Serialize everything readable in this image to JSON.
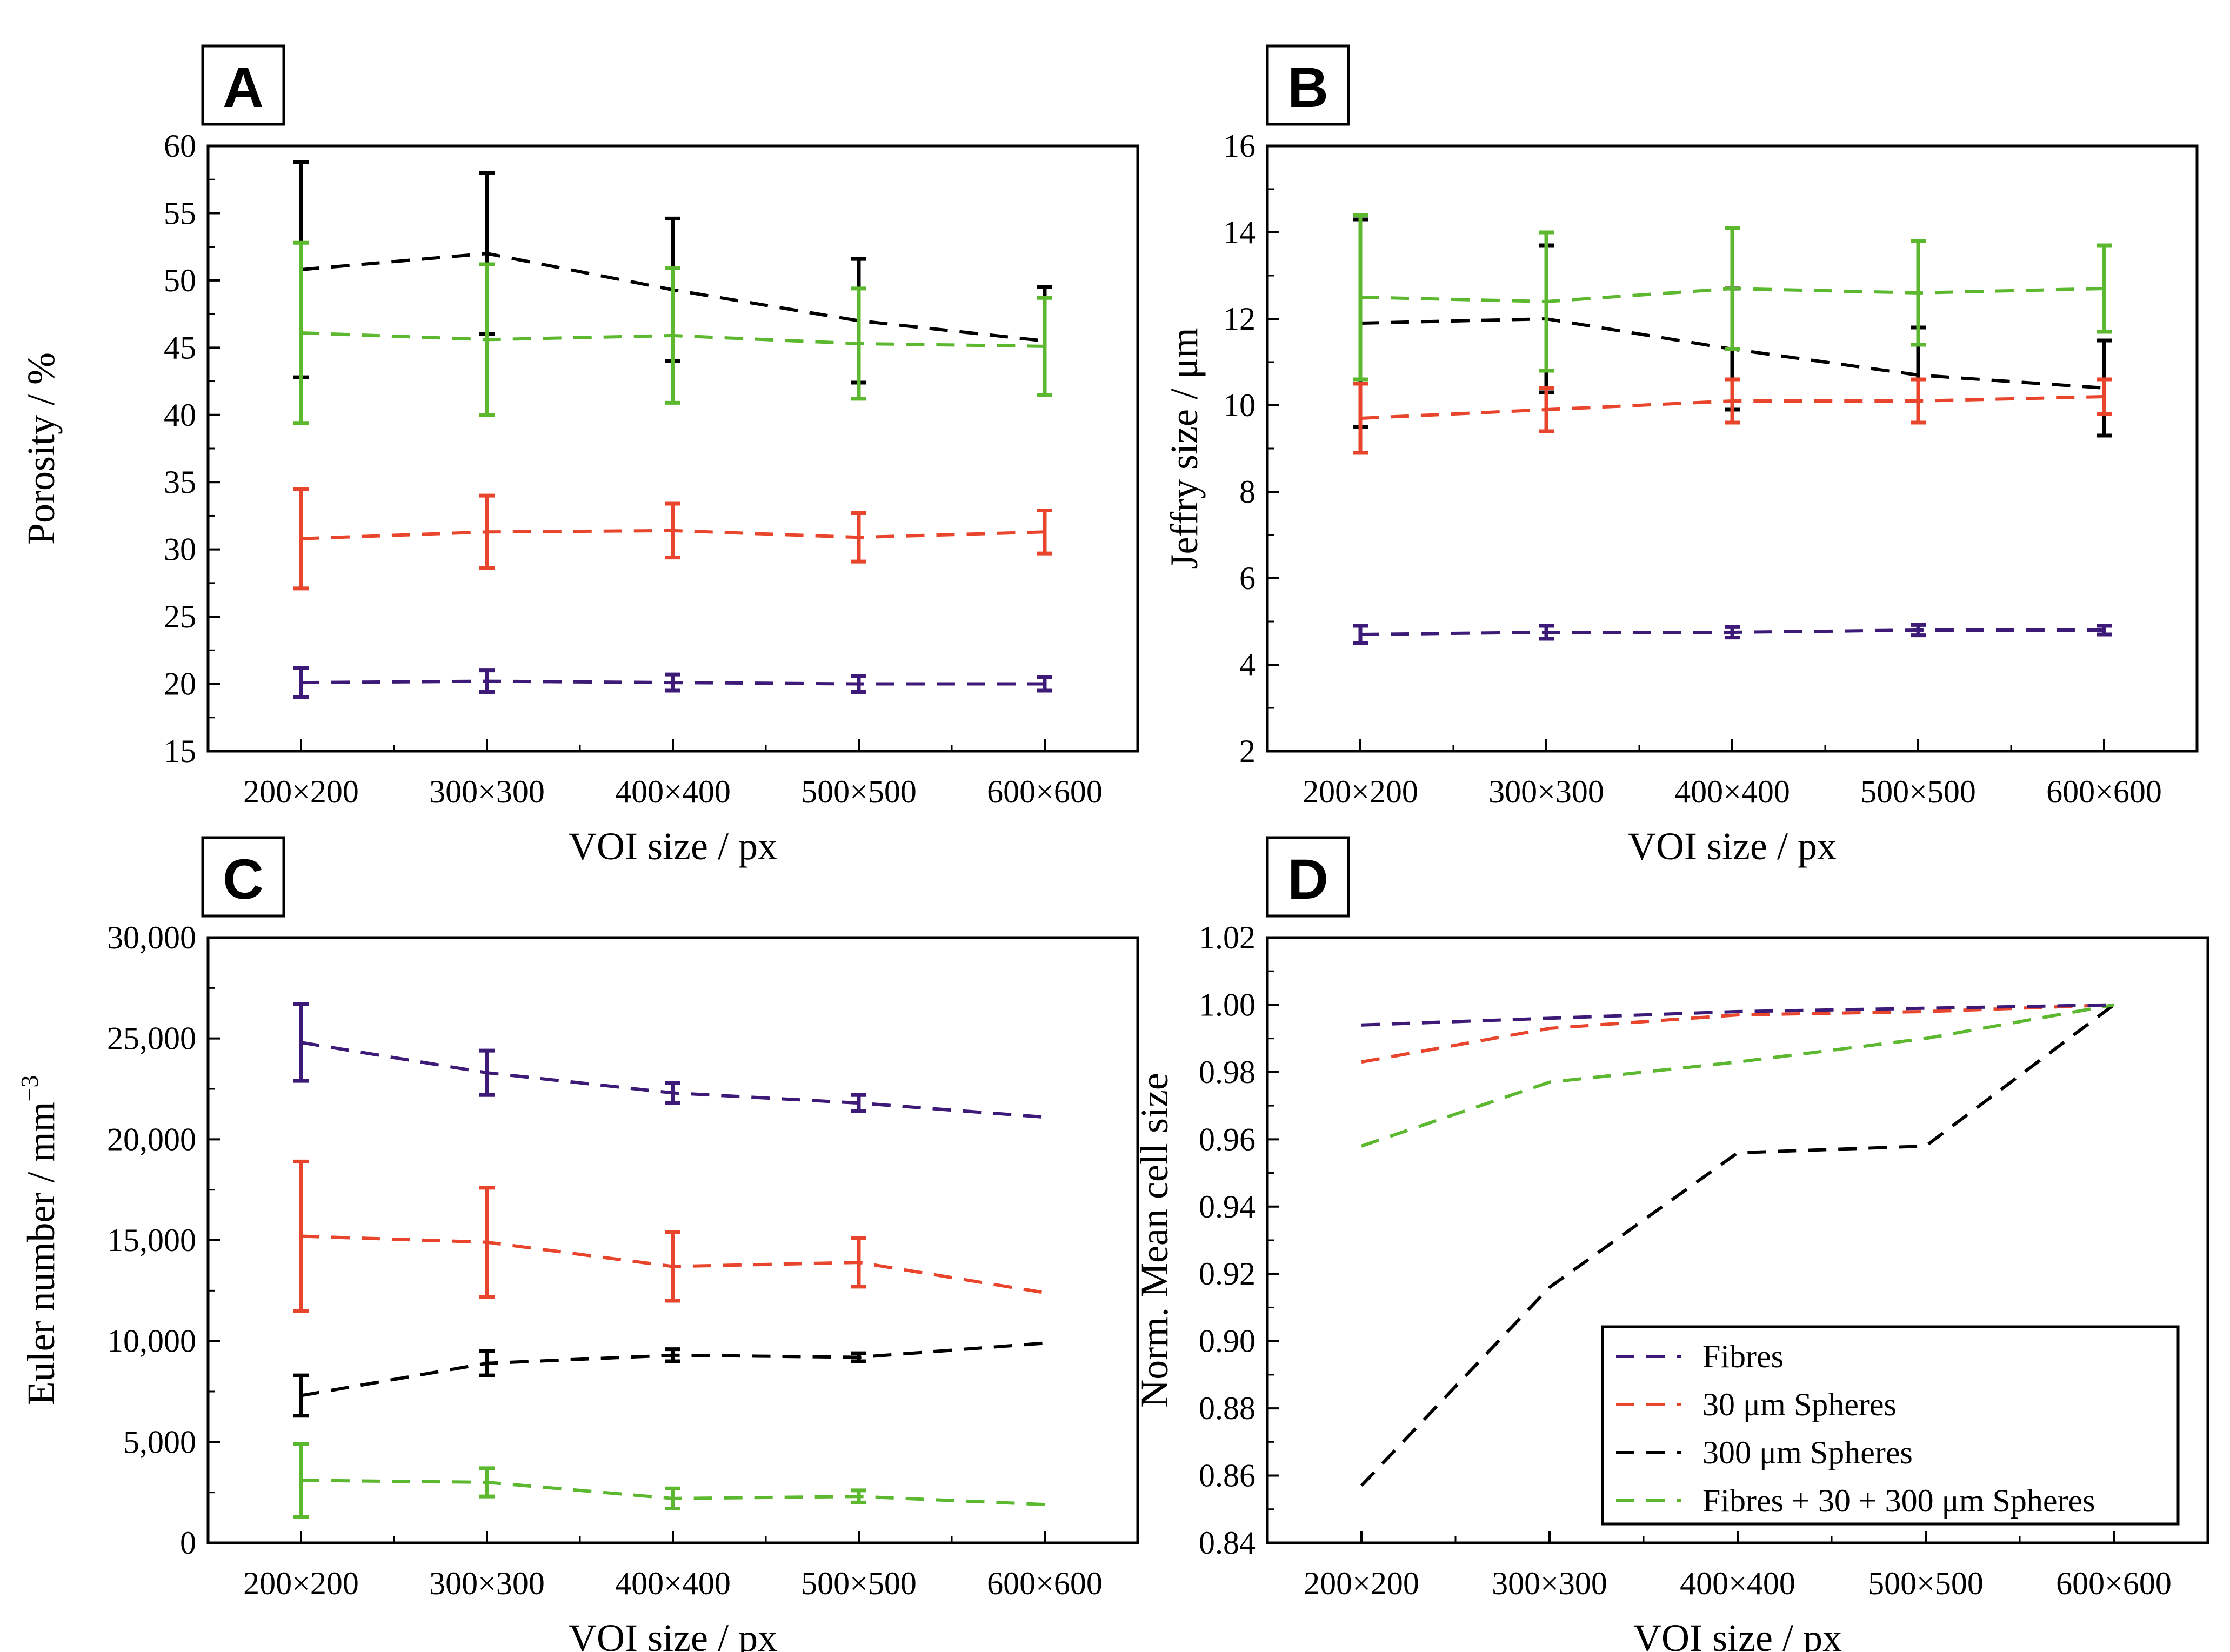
{
  "colors": {
    "fibres": "#3d1a78",
    "spheres30": "#e8452c",
    "spheres300": "#000000",
    "combined": "#5cb82e"
  },
  "legend": {
    "items": [
      {
        "series": "fibres",
        "label": "Fibres"
      },
      {
        "series": "spheres30",
        "label": "30 μm Spheres"
      },
      {
        "series": "spheres300",
        "label": "300 μm Spheres"
      },
      {
        "series": "combined",
        "label": "Fibres + 30 + 300 μm Spheres"
      }
    ]
  },
  "chart_data": [
    {
      "panel": "A",
      "type": "line",
      "categories": [
        "200×200",
        "300×300",
        "400×400",
        "500×500",
        "600×600"
      ],
      "xlabel": "VOI size / px",
      "ylabel": "Porosity / %",
      "ylim": [
        15,
        60
      ],
      "yticks": [
        15,
        20,
        25,
        30,
        35,
        40,
        45,
        50,
        55,
        60
      ],
      "ytick_labels": [
        "15",
        "20",
        "25",
        "30",
        "35",
        "40",
        "45",
        "50",
        "55",
        "60"
      ],
      "series": [
        {
          "key": "spheres300",
          "name": "300 μm Spheres",
          "values": [
            50.8,
            52.0,
            49.3,
            47.0,
            45.5
          ],
          "err": [
            8.0,
            6.0,
            5.3,
            4.6,
            4.0
          ]
        },
        {
          "key": "combined",
          "name": "Fibres + 30 + 300 μm Spheres",
          "values": [
            46.1,
            45.6,
            45.9,
            45.3,
            45.1
          ],
          "err": [
            6.7,
            5.6,
            5.0,
            4.1,
            3.6
          ]
        },
        {
          "key": "spheres30",
          "name": "30 μm Spheres",
          "values": [
            30.8,
            31.3,
            31.4,
            30.9,
            31.3
          ],
          "err": [
            3.7,
            2.7,
            2.0,
            1.8,
            1.6
          ]
        },
        {
          "key": "fibres",
          "name": "Fibres",
          "values": [
            20.1,
            20.2,
            20.1,
            20.0,
            20.0
          ],
          "err": [
            1.1,
            0.8,
            0.6,
            0.6,
            0.5
          ]
        }
      ]
    },
    {
      "panel": "B",
      "type": "line",
      "categories": [
        "200×200",
        "300×300",
        "400×400",
        "500×500",
        "600×600"
      ],
      "xlabel": "VOI size / px",
      "ylabel": "Jeffry size / μm",
      "ylim": [
        2,
        16
      ],
      "yticks": [
        2,
        4,
        6,
        8,
        10,
        12,
        14,
        16
      ],
      "ytick_labels": [
        "2",
        "4",
        "6",
        "8",
        "10",
        "12",
        "14",
        "16"
      ],
      "series": [
        {
          "key": "spheres300",
          "name": "300 μm Spheres",
          "values": [
            11.9,
            12.0,
            11.3,
            10.7,
            10.4
          ],
          "err": [
            2.4,
            1.7,
            1.4,
            1.1,
            1.1
          ]
        },
        {
          "key": "combined",
          "name": "Fibres + 30 + 300 μm Spheres",
          "values": [
            12.5,
            12.4,
            12.7,
            12.6,
            12.7
          ],
          "err": [
            1.9,
            1.6,
            1.4,
            1.2,
            1.0
          ]
        },
        {
          "key": "spheres30",
          "name": "30 μm Spheres",
          "values": [
            9.7,
            9.9,
            10.1,
            10.1,
            10.2
          ],
          "err": [
            0.8,
            0.5,
            0.5,
            0.5,
            0.4
          ]
        },
        {
          "key": "fibres",
          "name": "Fibres",
          "values": [
            4.7,
            4.75,
            4.75,
            4.8,
            4.8
          ],
          "err": [
            0.2,
            0.15,
            0.12,
            0.12,
            0.1
          ]
        }
      ]
    },
    {
      "panel": "C",
      "type": "line",
      "categories": [
        "200×200",
        "300×300",
        "400×400",
        "500×500",
        "600×600"
      ],
      "xlabel": "VOI size / px",
      "ylabel": "Euler number / mm",
      "ylabel_superscript": "−3",
      "ylim": [
        0,
        30000
      ],
      "yticks": [
        0,
        5000,
        10000,
        15000,
        20000,
        25000,
        30000
      ],
      "ytick_labels": [
        "0",
        "5,000",
        "10,000",
        "15,000",
        "20,000",
        "25,000",
        "30,000"
      ],
      "series": [
        {
          "key": "fibres",
          "name": "Fibres",
          "values": [
            24800,
            23300,
            22300,
            21800,
            21100
          ],
          "err": [
            1900,
            1100,
            500,
            400,
            null
          ]
        },
        {
          "key": "spheres30",
          "name": "30 μm Spheres",
          "values": [
            15200,
            14900,
            13700,
            13900,
            12400
          ],
          "err": [
            3700,
            2700,
            1700,
            1200,
            null
          ]
        },
        {
          "key": "spheres300",
          "name": "300 μm Spheres",
          "values": [
            7300,
            8900,
            9300,
            9200,
            9900
          ],
          "err": [
            1000,
            600,
            300,
            200,
            null
          ]
        },
        {
          "key": "combined",
          "name": "Fibres + 30 + 300 μm Spheres",
          "values": [
            3100,
            3000,
            2200,
            2300,
            1900
          ],
          "err": [
            1800,
            700,
            500,
            300,
            null
          ]
        }
      ]
    },
    {
      "panel": "D",
      "type": "line",
      "categories": [
        "200×200",
        "300×300",
        "400×400",
        "500×500",
        "600×600"
      ],
      "xlabel": "VOI size / px",
      "ylabel": "Norm. Mean cell size",
      "ylim": [
        0.84,
        1.02
      ],
      "yticks": [
        0.84,
        0.86,
        0.88,
        0.9,
        0.92,
        0.94,
        0.96,
        0.98,
        1.0,
        1.02
      ],
      "ytick_labels": [
        "0.84",
        "0.86",
        "0.88",
        "0.90",
        "0.92",
        "0.94",
        "0.96",
        "0.98",
        "1.00",
        "1.02"
      ],
      "legend": "bottom-right",
      "series": [
        {
          "key": "fibres",
          "name": "Fibres",
          "values": [
            0.994,
            0.996,
            0.998,
            0.999,
            1.0
          ]
        },
        {
          "key": "spheres30",
          "name": "30 μm Spheres",
          "values": [
            0.983,
            0.993,
            0.997,
            0.998,
            1.0
          ]
        },
        {
          "key": "spheres300",
          "name": "300 μm Spheres",
          "values": [
            0.857,
            0.916,
            0.956,
            0.958,
            1.0
          ]
        },
        {
          "key": "combined",
          "name": "Fibres + 30 + 300 μm Spheres",
          "values": [
            0.958,
            0.977,
            0.983,
            0.99,
            1.0
          ]
        }
      ]
    }
  ]
}
